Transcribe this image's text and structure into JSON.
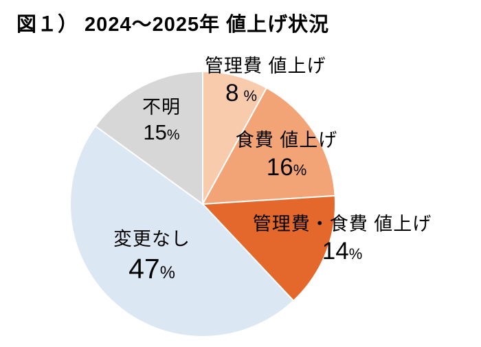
{
  "title": "図１） 2024～2025年 値上げ状況",
  "percent_sign": "%",
  "chart_data": {
    "type": "pie",
    "title": "図１） 2024～2025年 値上げ状況",
    "units": "%",
    "start_angle_deg": 0,
    "direction": "clockwise",
    "legend_position": "none",
    "slices": [
      {
        "label": "管理費 値上げ",
        "value": 8,
        "color": "#F8CBAD"
      },
      {
        "label": "食費 値上げ",
        "value": 16,
        "color": "#F2A477"
      },
      {
        "label": "管理費・食費 値上げ",
        "value": 14,
        "color": "#E4682B"
      },
      {
        "label": "変更なし",
        "value": 47,
        "color": "#DBE8F4"
      },
      {
        "label": "不明",
        "value": 15,
        "color": "#D7D7D7"
      }
    ]
  }
}
